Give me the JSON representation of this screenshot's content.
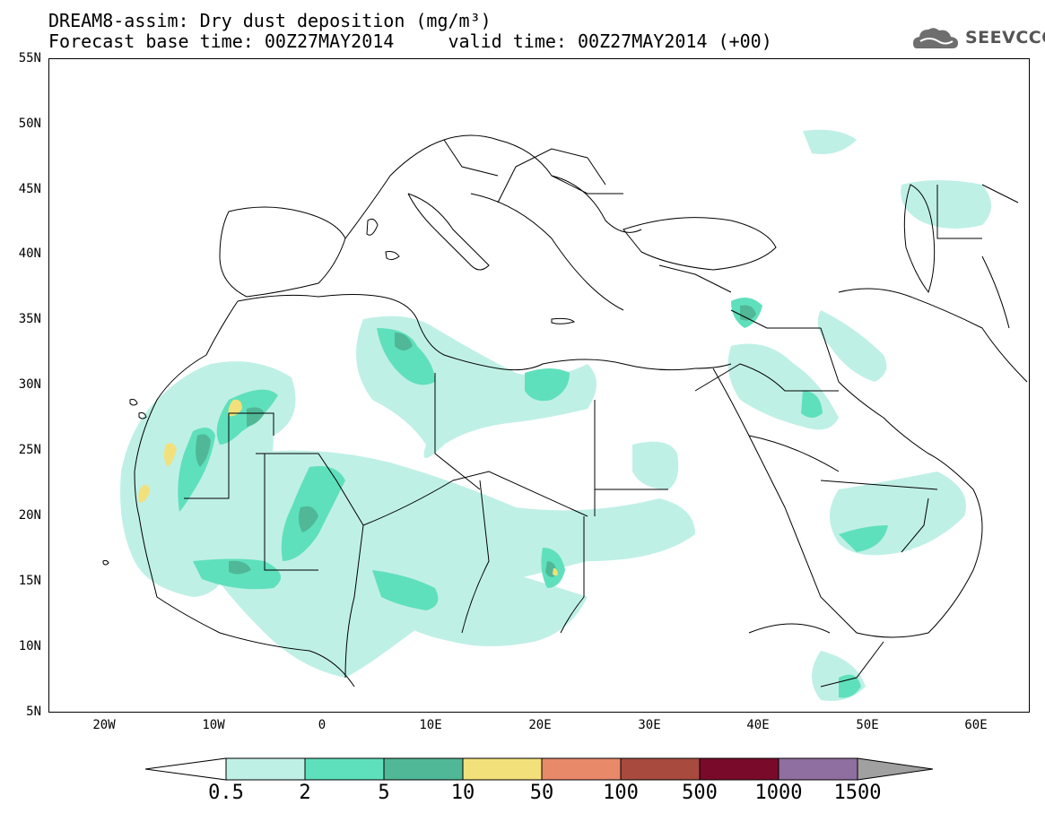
{
  "header": {
    "line1": "DREAM8-assim: Dry dust deposition (mg/m³)",
    "line2": "Forecast base time: 00Z27MAY2014     valid time: 00Z27MAY2014 (+00)"
  },
  "logo": {
    "text": "SEEVCCC",
    "icon": "cloud-icon"
  },
  "map": {
    "lat_labels": [
      "55N",
      "50N",
      "45N",
      "40N",
      "35N",
      "30N",
      "25N",
      "20N",
      "15N",
      "10N",
      "5N"
    ],
    "lon_labels": [
      "20W",
      "10W",
      "0",
      "10E",
      "20E",
      "30E",
      "40E",
      "50E",
      "60E"
    ],
    "colors": {
      "level1": "#bff0e6",
      "level2": "#5fe0bc",
      "level3": "#50b896",
      "level4": "#f2e07a",
      "border": "#000000"
    }
  },
  "colorbar": {
    "labels": [
      "0.5",
      "2",
      "5",
      "10",
      "50",
      "100",
      "500",
      "1000",
      "1500"
    ],
    "colors": [
      "#bff0e6",
      "#5fe0bc",
      "#50b896",
      "#f2e07a",
      "#e8896a",
      "#a84a3e",
      "#7a0a2a",
      "#8f6ea0",
      "#a0a0a0"
    ]
  }
}
